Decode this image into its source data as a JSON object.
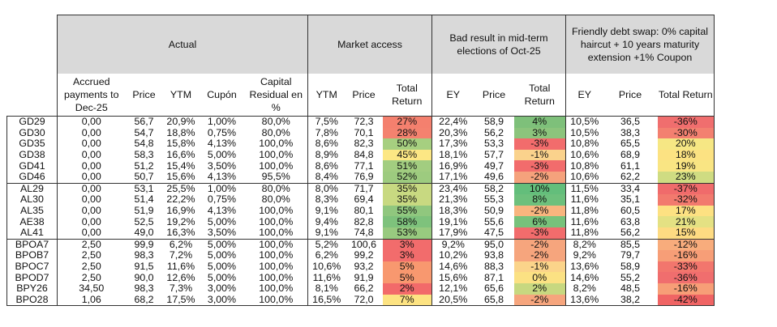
{
  "groups": {
    "actual": "Actual",
    "market_access": "Market access",
    "bad_result": "Bad result in mid-term elections of Oct-25",
    "debt_swap": "Friendly debt swap: 0% capital haircut + 10 years maturity extension +1% Coupon"
  },
  "columns": {
    "accrued": "Accrued payments to Dec-25",
    "price": "Price",
    "ytm": "YTM",
    "cupon": "Cupón",
    "capital_residual": "Capital Residual en %",
    "ma_ytm": "YTM",
    "ma_price": "Price",
    "ma_total_return": "Total Return",
    "br_ey": "EY",
    "br_price": "Price",
    "br_total_return": "Total Return",
    "ds_ey": "EY",
    "ds_price": "Price",
    "ds_total_return": "Total Return"
  },
  "colors": {
    "header_gray": "#d9d9d9",
    "border": "#333333"
  },
  "rows": [
    {
      "bond": "GD29",
      "accrued": "0,00",
      "price": "56,7",
      "ytm": "20,9%",
      "cupon": "1,00%",
      "cap": "80,0%",
      "ma_ytm": "7,5%",
      "ma_price": "72,3",
      "ma_tr": "27%",
      "ma_tr_color": "#f4806e",
      "br_ey": "22,4%",
      "br_price": "58,9",
      "br_tr": "4%",
      "br_tr_color": "#7ec07a",
      "ds_ey": "10,5%",
      "ds_price": "36,5",
      "ds_tr": "-36%",
      "ds_tr_color": "#f06e6e"
    },
    {
      "bond": "GD30",
      "accrued": "0,00",
      "price": "54,7",
      "ytm": "18,8%",
      "cupon": "0,75%",
      "cap": "80,0%",
      "ma_ytm": "7,8%",
      "ma_price": "70,1",
      "ma_tr": "28%",
      "ma_tr_color": "#f4826f",
      "br_ey": "20,3%",
      "br_price": "56,2",
      "br_tr": "3%",
      "br_tr_color": "#8cc47c",
      "ds_ey": "10,5%",
      "ds_price": "38,3",
      "ds_tr": "-30%",
      "ds_tr_color": "#f38070"
    },
    {
      "bond": "GD35",
      "accrued": "0,00",
      "price": "54,8",
      "ytm": "15,8%",
      "cupon": "4,13%",
      "cap": "100,0%",
      "ma_ytm": "8,6%",
      "ma_price": "82,3",
      "ma_tr": "50%",
      "ma_tr_color": "#a6cf80",
      "br_ey": "17,3%",
      "br_price": "53,3",
      "br_tr": "-3%",
      "br_tr_color": "#f26c6c",
      "ds_ey": "10,8%",
      "ds_price": "65,5",
      "ds_tr": "20%",
      "ds_tr_color": "#f6e784"
    },
    {
      "bond": "GD38",
      "accrued": "0,00",
      "price": "58,3",
      "ytm": "16,6%",
      "cupon": "5,00%",
      "cap": "100,0%",
      "ma_ytm": "8,9%",
      "ma_price": "84,8",
      "ma_tr": "45%",
      "ma_tr_color": "#fce784",
      "br_ey": "18,1%",
      "br_price": "57,7",
      "br_tr": "-1%",
      "br_tr_color": "#fad28c",
      "ds_ey": "10,6%",
      "ds_price": "68,9",
      "ds_tr": "18%",
      "ds_tr_color": "#fce282"
    },
    {
      "bond": "GD41",
      "accrued": "0,00",
      "price": "51,2",
      "ytm": "15,4%",
      "cupon": "3,50%",
      "cap": "100,0%",
      "ma_ytm": "8,6%",
      "ma_price": "77,1",
      "ma_tr": "51%",
      "ma_tr_color": "#a2cd80",
      "br_ey": "16,9%",
      "br_price": "49,7",
      "br_tr": "-3%",
      "br_tr_color": "#f26c6c",
      "ds_ey": "10,8%",
      "ds_price": "61,1",
      "ds_tr": "19%",
      "ds_tr_color": "#f9e583"
    },
    {
      "bond": "GD46",
      "accrued": "0,00",
      "price": "50,7",
      "ytm": "15,6%",
      "cupon": "4,13%",
      "cap": "95,5%",
      "ma_ytm": "8,4%",
      "ma_price": "76,9",
      "ma_tr": "52%",
      "ma_tr_color": "#9dcb7f",
      "br_ey": "17,1%",
      "br_price": "49,6",
      "br_tr": "-2%",
      "br_tr_color": "#f5a27c",
      "ds_ey": "10,6%",
      "ds_price": "62,2",
      "ds_tr": "23%",
      "ds_tr_color": "#cfdc82"
    },
    {
      "bond": "AL29",
      "accrued": "0,00",
      "price": "53,1",
      "ytm": "25,5%",
      "cupon": "1,00%",
      "cap": "80,0%",
      "ma_ytm": "8,0%",
      "ma_price": "71,7",
      "ma_tr": "35%",
      "ma_tr_color": "#c8d981",
      "br_ey": "23,4%",
      "br_price": "58,2",
      "br_tr": "10%",
      "br_tr_color": "#63be7b",
      "ds_ey": "11,5%",
      "ds_price": "33,4",
      "ds_tr": "-37%",
      "ds_tr_color": "#f06b6b"
    },
    {
      "bond": "AL30",
      "accrued": "0,00",
      "price": "51,4",
      "ytm": "22,2%",
      "cupon": "0,75%",
      "cap": "80,0%",
      "ma_ytm": "8,3%",
      "ma_price": "69,4",
      "ma_tr": "35%",
      "ma_tr_color": "#c8d981",
      "br_ey": "21,3%",
      "br_price": "55,3",
      "br_tr": "8%",
      "br_tr_color": "#6dc07c",
      "ds_ey": "11,6%",
      "ds_price": "35,1",
      "ds_tr": "-32%",
      "ds_tr_color": "#f27a6e"
    },
    {
      "bond": "AL35",
      "accrued": "0,00",
      "price": "51,9",
      "ytm": "16,9%",
      "cupon": "4,13%",
      "cap": "100,0%",
      "ma_ytm": "9,1%",
      "ma_price": "80,1",
      "ma_tr": "55%",
      "ma_tr_color": "#90c77e",
      "br_ey": "18,3%",
      "br_price": "50,9",
      "br_tr": "-2%",
      "br_tr_color": "#f8b57e",
      "ds_ey": "11,8%",
      "ds_price": "60,5",
      "ds_tr": "17%",
      "ds_tr_color": "#fde182"
    },
    {
      "bond": "AE38",
      "accrued": "0,00",
      "price": "52,5",
      "ytm": "19,2%",
      "cupon": "5,00%",
      "cap": "100,0%",
      "ma_ytm": "9,4%",
      "ma_price": "82,8",
      "ma_tr": "58%",
      "ma_tr_color": "#7ec27c",
      "br_ey": "19,1%",
      "br_price": "55,6",
      "br_tr": "6%",
      "br_tr_color": "#77c27b",
      "ds_ey": "11,6%",
      "ds_price": "63,8",
      "ds_tr": "21%",
      "ds_tr_color": "#e4e183"
    },
    {
      "bond": "AL41",
      "accrued": "0,00",
      "price": "49,0",
      "ytm": "16,3%",
      "cupon": "3,50%",
      "cap": "100,0%",
      "ma_ytm": "9,1%",
      "ma_price": "74,8",
      "ma_tr": "53%",
      "ma_tr_color": "#98ca7f",
      "br_ey": "17,9%",
      "br_price": "47,5",
      "br_tr": "-3%",
      "br_tr_color": "#f26c6c",
      "ds_ey": "11,8%",
      "ds_price": "56,2",
      "ds_tr": "15%",
      "ds_tr_color": "#fedb82"
    },
    {
      "bond": "BPOA7",
      "accrued": "2,50",
      "price": "99,9",
      "ytm": "6,2%",
      "cupon": "5,00%",
      "cap": "100,0%",
      "ma_ytm": "5,2%",
      "ma_price": "100,6",
      "ma_tr": "3%",
      "ma_tr_color": "#f26c6c",
      "br_ey": "9,2%",
      "br_price": "95,0",
      "br_tr": "-2%",
      "br_tr_color": "#f6a57d",
      "ds_ey": "8,2%",
      "ds_price": "85,5",
      "ds_tr": "-12%",
      "ds_tr_color": "#f8ac7c"
    },
    {
      "bond": "BPOB7",
      "accrued": "2,50",
      "price": "98,3",
      "ytm": "7,2%",
      "cupon": "5,00%",
      "cap": "100,0%",
      "ma_ytm": "6,2%",
      "ma_price": "99,2",
      "ma_tr": "3%",
      "ma_tr_color": "#f26c6c",
      "br_ey": "10,2%",
      "br_price": "93,8",
      "br_tr": "-2%",
      "br_tr_color": "#f6a57d",
      "ds_ey": "9,2%",
      "ds_price": "79,7",
      "ds_tr": "-16%",
      "ds_tr_color": "#f79e77"
    },
    {
      "bond": "BPOC7",
      "accrued": "2,50",
      "price": "91,5",
      "ytm": "11,6%",
      "cupon": "5,00%",
      "cap": "100,0%",
      "ma_ytm": "10,6%",
      "ma_price": "93,2",
      "ma_tr": "5%",
      "ma_tr_color": "#f8986f",
      "br_ey": "14,6%",
      "br_price": "88,3",
      "br_tr": "-1%",
      "br_tr_color": "#fbd48a",
      "ds_ey": "13,6%",
      "ds_price": "58,9",
      "ds_tr": "-33%",
      "ds_tr_color": "#f2766d"
    },
    {
      "bond": "BPOD7",
      "accrued": "2,50",
      "price": "90,0",
      "ytm": "12,6%",
      "cupon": "5,00%",
      "cap": "100,0%",
      "ma_ytm": "11,6%",
      "ma_price": "91,9",
      "ma_tr": "5%",
      "ma_tr_color": "#f8986f",
      "br_ey": "15,6%",
      "br_price": "87,1",
      "br_tr": "0%",
      "br_tr_color": "#fbe183",
      "ds_ey": "14,6%",
      "ds_price": "55,2",
      "ds_tr": "-36%",
      "ds_tr_color": "#f06e6e"
    },
    {
      "bond": "BPY26",
      "accrued": "34,50",
      "price": "98,3",
      "ytm": "7,3%",
      "cupon": "3,00%",
      "cap": "100,0%",
      "ma_ytm": "8,1%",
      "ma_price": "66,2",
      "ma_tr": "2%",
      "ma_tr_color": "#f26a6a",
      "br_ey": "12,1%",
      "br_price": "65,6",
      "br_tr": "2%",
      "br_tr_color": "#c7d880",
      "ds_ey": "8,2%",
      "ds_price": "48,5",
      "ds_tr": "-16%",
      "ds_tr_color": "#f79e77"
    },
    {
      "bond": "BPO28",
      "accrued": "1,06",
      "price": "68,2",
      "ytm": "17,5%",
      "cupon": "3,00%",
      "cap": "100,0%",
      "ma_ytm": "16,5%",
      "ma_price": "72,0",
      "ma_tr": "7%",
      "ma_tr_color": "#fde382",
      "br_ey": "20,5%",
      "br_price": "65,8",
      "br_tr": "-2%",
      "br_tr_color": "#f6a57d",
      "ds_ey": "13,6%",
      "ds_price": "38,2",
      "ds_tr": "-42%",
      "ds_tr_color": "#f06464"
    }
  ]
}
